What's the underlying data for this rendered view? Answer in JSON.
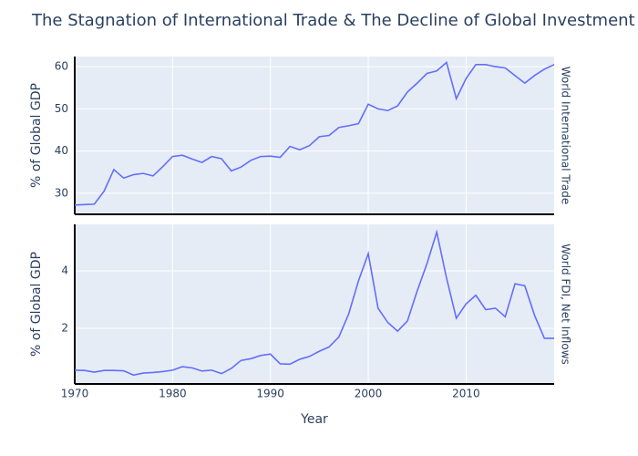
{
  "chart_data": [
    {
      "type": "line",
      "title": "The Stagnation of International Trade & The Decline of Global Investment",
      "ylabel": "% of Global GDP",
      "x": [
        1970,
        1971,
        1972,
        1973,
        1974,
        1975,
        1976,
        1977,
        1978,
        1979,
        1980,
        1981,
        1982,
        1983,
        1984,
        1985,
        1986,
        1987,
        1988,
        1989,
        1990,
        1991,
        1992,
        1993,
        1994,
        1995,
        1996,
        1997,
        1998,
        1999,
        2000,
        2001,
        2002,
        2003,
        2004,
        2005,
        2006,
        2007,
        2008,
        2009,
        2010,
        2011,
        2012,
        2013,
        2014,
        2015,
        2016,
        2017,
        2018,
        2019
      ],
      "series": [
        {
          "name": "World International Trade",
          "color": "#636efa",
          "values": [
            27.2,
            27.3,
            27.4,
            30.5,
            35.6,
            33.6,
            34.4,
            34.7,
            34.1,
            36.3,
            38.7,
            39.0,
            38.1,
            37.3,
            38.7,
            38.2,
            35.3,
            36.2,
            37.8,
            38.7,
            38.8,
            38.5,
            41.1,
            40.3,
            41.3,
            43.4,
            43.7,
            45.6,
            46.0,
            46.5,
            51.1,
            50.0,
            49.6,
            50.7,
            54.0,
            56.1,
            58.4,
            59.0,
            61.0,
            52.4,
            57.2,
            60.5,
            60.5,
            60.0,
            59.7,
            57.9,
            56.1,
            57.9,
            59.4,
            60.5
          ]
        }
      ],
      "ylim": [
        25.0,
        62.4
      ],
      "yticks": [
        30,
        40,
        50,
        60
      ],
      "grid": true
    },
    {
      "type": "line",
      "ylabel": "% of Global GDP",
      "xlabel": "Year",
      "x": [
        1970,
        1971,
        1972,
        1973,
        1974,
        1975,
        1976,
        1977,
        1978,
        1979,
        1980,
        1981,
        1982,
        1983,
        1984,
        1985,
        1986,
        1987,
        1988,
        1989,
        1990,
        1991,
        1992,
        1993,
        1994,
        1995,
        1996,
        1997,
        1998,
        1999,
        2000,
        2001,
        2002,
        2003,
        2004,
        2005,
        2006,
        2007,
        2008,
        2009,
        2010,
        2011,
        2012,
        2013,
        2014,
        2015,
        2016,
        2017,
        2018,
        2019
      ],
      "series": [
        {
          "name": "World FDI, Net Inflows",
          "color": "#636efa",
          "values": [
            0.54,
            0.53,
            0.47,
            0.53,
            0.53,
            0.52,
            0.37,
            0.44,
            0.46,
            0.49,
            0.54,
            0.66,
            0.62,
            0.51,
            0.54,
            0.42,
            0.6,
            0.88,
            0.94,
            1.05,
            1.1,
            0.76,
            0.75,
            0.92,
            1.02,
            1.2,
            1.35,
            1.7,
            2.5,
            3.65,
            4.6,
            2.7,
            2.2,
            1.9,
            2.25,
            3.3,
            4.25,
            5.35,
            3.75,
            2.35,
            2.85,
            3.15,
            2.65,
            2.7,
            2.4,
            3.55,
            3.48,
            2.45,
            1.65,
            1.65
          ]
        }
      ],
      "xlim": [
        1970,
        2019
      ],
      "xticks": [
        1970,
        1980,
        1990,
        2000,
        2010
      ],
      "ylim": [
        0.06,
        5.62
      ],
      "yticks": [
        2,
        4
      ],
      "grid": true
    }
  ]
}
